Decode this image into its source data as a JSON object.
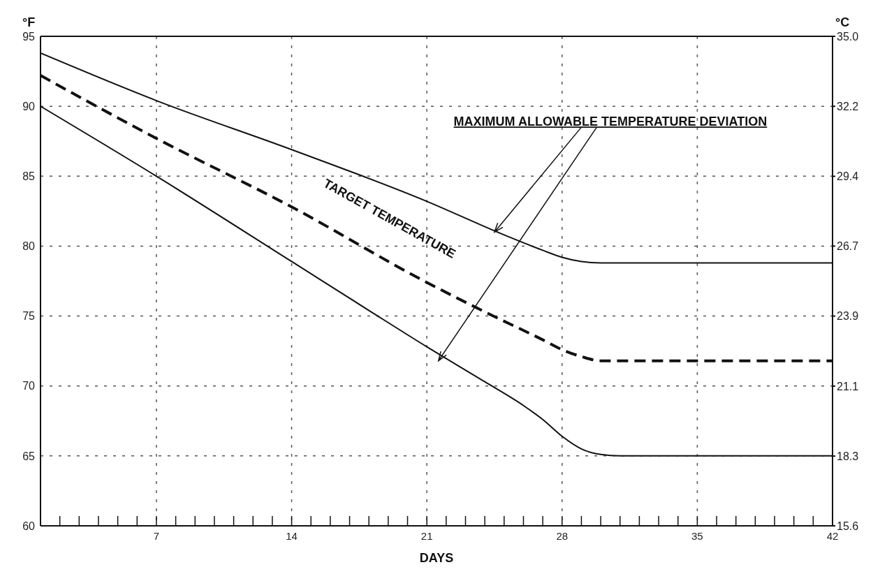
{
  "chart_data": {
    "type": "line",
    "xlabel": "DAYS",
    "ylabel": "°F",
    "y2label": "°C",
    "xlim": [
      1,
      42
    ],
    "xticks": [
      {
        "value": 1,
        "label": null
      },
      {
        "value": 2,
        "label": null
      },
      {
        "value": 3,
        "label": null
      },
      {
        "value": 4,
        "label": null
      },
      {
        "value": 5,
        "label": null
      },
      {
        "value": 6,
        "label": null
      },
      7,
      {
        "value": 8,
        "label": null
      },
      {
        "value": 9,
        "label": null
      },
      {
        "value": 10,
        "label": null
      },
      {
        "value": 11,
        "label": null
      },
      {
        "value": 12,
        "label": null
      },
      {
        "value": 13,
        "label": null
      },
      14,
      {
        "value": 15,
        "label": null
      },
      {
        "value": 16,
        "label": null
      },
      {
        "value": 17,
        "label": null
      },
      {
        "value": 18,
        "label": null
      },
      {
        "value": 19,
        "label": null
      },
      {
        "value": 20,
        "label": null
      },
      21,
      {
        "value": 22,
        "label": null
      },
      {
        "value": 23,
        "label": null
      },
      {
        "value": 24,
        "label": null
      },
      {
        "value": 25,
        "label": null
      },
      {
        "value": 26,
        "label": null
      },
      {
        "value": 27,
        "label": null
      },
      28,
      {
        "value": 29,
        "label": null
      },
      {
        "value": 30,
        "label": null
      },
      {
        "value": 31,
        "label": null
      },
      {
        "value": 32,
        "label": null
      },
      {
        "value": 33,
        "label": null
      },
      {
        "value": 34,
        "label": null
      },
      35,
      {
        "value": 36,
        "label": null
      },
      {
        "value": 37,
        "label": null
      },
      {
        "value": 38,
        "label": null
      },
      {
        "value": 39,
        "label": null
      },
      {
        "value": 40,
        "label": null
      },
      {
        "value": 41,
        "label": null
      },
      42
    ],
    "ylim": [
      60,
      95
    ],
    "yticks": [
      60,
      65,
      70,
      75,
      80,
      85,
      90,
      95
    ],
    "y2lim": [
      15.56,
      35.0
    ],
    "y2ticks": [
      {
        "value": 15.56,
        "label": "15.6"
      },
      {
        "value": 18.33,
        "label": "18.3"
      },
      {
        "value": 21.11,
        "label": "21.1"
      },
      {
        "value": 23.89,
        "label": "23.9"
      },
      {
        "value": 26.67,
        "label": "26.7"
      },
      {
        "value": 29.44,
        "label": "29.4"
      },
      {
        "value": 32.22,
        "label": "32.2"
      },
      {
        "value": 35.0,
        "label": "35.0"
      }
    ],
    "grid": true,
    "series": [
      {
        "color": "#111111",
        "line_style": "solid",
        "x": [
          1,
          7,
          14,
          21,
          25,
          27,
          28,
          29,
          30,
          42
        ],
        "values": [
          93.8,
          90.4,
          86.9,
          83.2,
          80.8,
          79.7,
          79.2,
          78.9,
          78.8,
          78.8
        ]
      },
      {
        "color": "#111111",
        "line_style": "dashed",
        "x": [
          1,
          7,
          14,
          21,
          24,
          27,
          28,
          29,
          30,
          42
        ],
        "values": [
          92.2,
          87.7,
          82.8,
          77.4,
          75.3,
          73.3,
          72.6,
          72.1,
          71.8,
          71.8
        ]
      },
      {
        "color": "#111111",
        "line_style": "solid",
        "x": [
          1,
          7,
          14,
          18,
          21,
          24,
          26,
          27,
          28,
          29,
          30,
          31,
          42
        ],
        "values": [
          90.0,
          85.0,
          78.9,
          75.4,
          72.8,
          70.3,
          68.6,
          67.6,
          66.4,
          65.5,
          65.1,
          65.0,
          65.0
        ]
      }
    ],
    "annotations": [
      "TARGET TEMPERATURE",
      {
        "text": "MAXIMUM ALLOWABLE TEMPERATURE DEVIATION",
        "x": 24.5,
        "y": 81.0
      }
    ]
  }
}
